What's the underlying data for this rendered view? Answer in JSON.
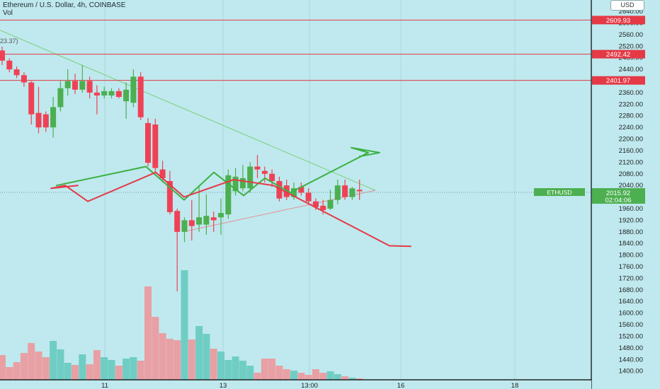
{
  "header": {
    "title": "Ethereum / U.S. Dollar, 4h, COINBASE",
    "volume_label": "Vol",
    "partial_label": "23.37)"
  },
  "price_axis": {
    "currency": "USD",
    "ticks": [
      "2640.00",
      "2600.00",
      "2560.00",
      "2520.00",
      "2480.00",
      "2440.00",
      "2400.00",
      "2360.00",
      "2320.00",
      "2280.00",
      "2240.00",
      "2200.00",
      "2160.00",
      "2120.00",
      "2080.00",
      "2040.00",
      "2000.00",
      "1960.00",
      "1920.00",
      "1880.00",
      "1840.00",
      "1800.00",
      "1760.00",
      "1720.00",
      "1680.00",
      "1640.00",
      "1600.00",
      "1560.00",
      "1520.00",
      "1480.00",
      "1440.00",
      "1400.00"
    ],
    "levels": [
      {
        "label": "2609.93",
        "value": 2609.93,
        "color": "#e53946"
      },
      {
        "label": "2492.42",
        "value": 2492.42,
        "color": "#e53946"
      },
      {
        "label": "2401.97",
        "value": 2401.97,
        "color": "#e53946"
      }
    ],
    "symbol_tag": "ETHUSD",
    "price_tag": {
      "price": "2015.92",
      "countdown": "02:04:06"
    }
  },
  "time_axis": {
    "labels": [
      "11",
      "13",
      "13:00",
      "16",
      "18"
    ]
  },
  "chart_data": {
    "type": "candlestick",
    "colors": {
      "up": "#4caf50",
      "down": "#ef4155",
      "vol_up": "#6fcdc4",
      "vol_down": "#e8a0a4",
      "level": "#e53946"
    },
    "y_range": [
      1370,
      2650
    ],
    "candles": [
      {
        "o": 2505,
        "h": 2518,
        "l": 2455,
        "c": 2470
      },
      {
        "o": 2470,
        "h": 2478,
        "l": 2430,
        "c": 2440
      },
      {
        "o": 2440,
        "h": 2450,
        "l": 2410,
        "c": 2420
      },
      {
        "o": 2420,
        "h": 2430,
        "l": 2380,
        "c": 2395
      },
      {
        "o": 2395,
        "h": 2400,
        "l": 2250,
        "c": 2285
      },
      {
        "o": 2290,
        "h": 2380,
        "l": 2220,
        "c": 2240
      },
      {
        "o": 2285,
        "h": 2295,
        "l": 2225,
        "c": 2240
      },
      {
        "o": 2240,
        "h": 2345,
        "l": 2205,
        "c": 2310
      },
      {
        "o": 2310,
        "h": 2400,
        "l": 2295,
        "c": 2375
      },
      {
        "o": 2375,
        "h": 2440,
        "l": 2350,
        "c": 2400
      },
      {
        "o": 2400,
        "h": 2425,
        "l": 2355,
        "c": 2370
      },
      {
        "o": 2370,
        "h": 2455,
        "l": 2360,
        "c": 2400
      },
      {
        "o": 2400,
        "h": 2415,
        "l": 2340,
        "c": 2360
      },
      {
        "o": 2360,
        "h": 2385,
        "l": 2285,
        "c": 2350
      },
      {
        "o": 2350,
        "h": 2380,
        "l": 2340,
        "c": 2365
      },
      {
        "o": 2350,
        "h": 2375,
        "l": 2340,
        "c": 2365
      },
      {
        "o": 2365,
        "h": 2375,
        "l": 2340,
        "c": 2345
      },
      {
        "o": 2330,
        "h": 2395,
        "l": 2270,
        "c": 2370
      },
      {
        "o": 2325,
        "h": 2440,
        "l": 2310,
        "c": 2415
      },
      {
        "o": 2415,
        "h": 2430,
        "l": 2265,
        "c": 2275
      },
      {
        "o": 2255,
        "h": 2272,
        "l": 2105,
        "c": 2118
      },
      {
        "o": 2250,
        "h": 2270,
        "l": 2085,
        "c": 2100
      },
      {
        "o": 2095,
        "h": 2125,
        "l": 2050,
        "c": 2065
      },
      {
        "o": 2055,
        "h": 2090,
        "l": 1940,
        "c": 1948
      },
      {
        "o": 1952,
        "h": 1960,
        "l": 1675,
        "c": 1880
      },
      {
        "o": 1880,
        "h": 1930,
        "l": 1845,
        "c": 1920
      },
      {
        "o": 1920,
        "h": 1990,
        "l": 1850,
        "c": 1900
      },
      {
        "o": 1905,
        "h": 2035,
        "l": 1880,
        "c": 1930
      },
      {
        "o": 1905,
        "h": 2010,
        "l": 1870,
        "c": 1935
      },
      {
        "o": 1930,
        "h": 1950,
        "l": 1880,
        "c": 1920
      },
      {
        "o": 1930,
        "h": 1995,
        "l": 1870,
        "c": 1945
      },
      {
        "o": 1940,
        "h": 2095,
        "l": 1925,
        "c": 2075
      },
      {
        "o": 2020,
        "h": 2100,
        "l": 2005,
        "c": 2070
      },
      {
        "o": 2030,
        "h": 2110,
        "l": 2020,
        "c": 2065
      },
      {
        "o": 2030,
        "h": 2120,
        "l": 2015,
        "c": 2105
      },
      {
        "o": 2105,
        "h": 2145,
        "l": 2065,
        "c": 2095
      },
      {
        "o": 2090,
        "h": 2105,
        "l": 2050,
        "c": 2080
      },
      {
        "o": 2080,
        "h": 2095,
        "l": 2035,
        "c": 2055
      },
      {
        "o": 2055,
        "h": 2070,
        "l": 1985,
        "c": 1995
      },
      {
        "o": 2040,
        "h": 2060,
        "l": 1990,
        "c": 2000
      },
      {
        "o": 2000,
        "h": 2050,
        "l": 1990,
        "c": 2030
      },
      {
        "o": 2035,
        "h": 2050,
        "l": 2005,
        "c": 2015
      },
      {
        "o": 2015,
        "h": 2030,
        "l": 1975,
        "c": 1985
      },
      {
        "o": 1985,
        "h": 1995,
        "l": 1955,
        "c": 1965
      },
      {
        "o": 1970,
        "h": 1990,
        "l": 1940,
        "c": 1955
      },
      {
        "o": 1960,
        "h": 2025,
        "l": 1955,
        "c": 1990
      },
      {
        "o": 1990,
        "h": 2060,
        "l": 1975,
        "c": 2040
      },
      {
        "o": 2040,
        "h": 2060,
        "l": 1990,
        "c": 2000
      },
      {
        "o": 2000,
        "h": 2035,
        "l": 1990,
        "c": 2030
      },
      {
        "o": 2025,
        "h": 2060,
        "l": 1990,
        "c": 2020
      }
    ],
    "volumes": [
      35,
      18,
      25,
      38,
      52,
      40,
      32,
      55,
      43,
      24,
      21,
      36,
      22,
      42,
      32,
      28,
      20,
      30,
      32,
      27,
      132,
      89,
      66,
      58,
      56,
      155,
      57,
      76,
      65,
      44,
      40,
      28,
      33,
      27,
      20,
      10,
      30,
      30,
      20,
      15,
      13,
      10,
      7,
      15,
      10,
      12,
      8,
      5,
      3,
      2
    ],
    "patterns": [
      {
        "name": "bullish-path",
        "color": "#3cb043",
        "points": [
          [
            2040,
            2040
          ],
          [
            2103,
            2105
          ],
          [
            2130,
            1990
          ],
          [
            2151,
            2085
          ],
          [
            2172,
            2005
          ],
          [
            2187,
            2065
          ],
          [
            2205,
            2015
          ],
          [
            2260,
            2153
          ],
          [
            2248,
            2170
          ],
          [
            2268,
            2153
          ],
          [
            2254,
            2140
          ]
        ]
      },
      {
        "name": "bearish-path",
        "color": "#e53946",
        "points": [
          [
            2055,
            2040
          ],
          [
            2036,
            2030
          ],
          [
            2046,
            2040
          ],
          [
            2062,
            1985
          ],
          [
            2110,
            2085
          ],
          [
            2130,
            2000
          ],
          [
            2165,
            2060
          ],
          [
            2193,
            2040
          ],
          [
            2275,
            1832
          ],
          [
            2290,
            1830
          ]
        ]
      }
    ]
  }
}
